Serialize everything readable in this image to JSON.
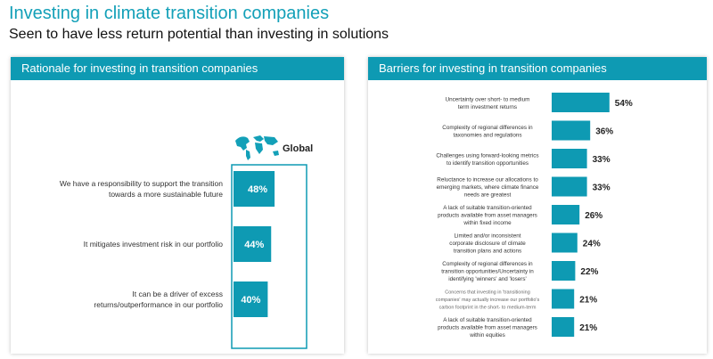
{
  "title": "Investing in climate transition companies",
  "subtitle": "Seen to have less return potential than investing in solutions",
  "colors": {
    "accent": "#13a0b8",
    "bar": "#0e9ab3",
    "header": "#0e9ab3"
  },
  "left_panel": {
    "header": "Rationale for investing in transition companies",
    "legend_label": "Global",
    "legend_icon": "world-map-icon"
  },
  "right_panel": {
    "header": "Barriers for investing in transition companies"
  },
  "chart_data": [
    {
      "type": "bar",
      "orientation": "horizontal",
      "legend": "Global",
      "categories": [
        [
          "We have a responsibility to support the transition",
          "towards a more sustainable future"
        ],
        [
          "It mitigates investment risk in our portfolio"
        ],
        [
          "It can be a driver of excess",
          "returns/outperformance in our portfolio"
        ]
      ],
      "values": [
        48,
        44,
        40
      ],
      "value_labels": [
        "48%",
        "44%",
        "40%"
      ],
      "xlim": [
        0,
        100
      ]
    },
    {
      "type": "bar",
      "orientation": "horizontal",
      "categories": [
        [
          "Uncertainty over short- to medium",
          "term investment returns"
        ],
        [
          "Complexity of regional differences in",
          "taxonomies and regulations"
        ],
        [
          "Challenges using forward-looking metrics",
          "to identify transition opportunities"
        ],
        [
          "Reluctance to increase our allocations to",
          "emerging markets, where climate finance",
          "needs are greatest"
        ],
        [
          "A lack of suitable transition-oriented",
          "products available from asset managers",
          "within fixed income"
        ],
        [
          "Limited and/or inconsistent",
          "corporate disclosure of climate",
          "transition plans and actions"
        ],
        [
          "Complexity of regional differences in",
          "transition opportunities/Uncertainty in",
          "identifying 'winners' and 'losers'"
        ],
        [
          "Concerns that investing in 'transitioning",
          "companies' may actually increase our portfolio's",
          "carbon footprint in the short- to medium-term"
        ],
        [
          "A lack of suitable transition-oriented",
          "products available from asset managers",
          "within equities"
        ]
      ],
      "values": [
        54,
        36,
        33,
        33,
        26,
        24,
        22,
        21,
        21
      ],
      "value_labels": [
        "54%",
        "36%",
        "33%",
        "33%",
        "26%",
        "24%",
        "22%",
        "21%",
        "21%"
      ],
      "xlim": [
        0,
        100
      ]
    }
  ]
}
